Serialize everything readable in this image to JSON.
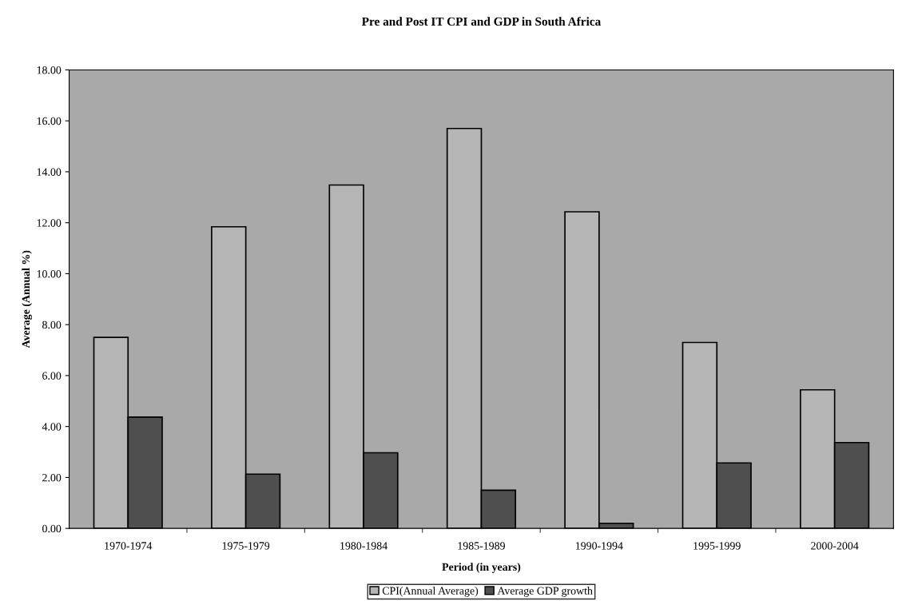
{
  "chart_data": {
    "type": "bar",
    "title": "Pre and Post IT CPI and GDP in South Africa",
    "xlabel": "Period (in years)",
    "ylabel": "Average (Annual %)",
    "categories": [
      "1970-1974",
      "1975-1979",
      "1980-1984",
      "1985-1989",
      "1990-1994",
      "1995-1999",
      "2000-2004"
    ],
    "series": [
      {
        "name": "CPI(Annual Average)",
        "color": "#b5b5b5",
        "values": [
          7.5,
          11.84,
          13.48,
          15.7,
          12.43,
          7.3,
          5.44
        ]
      },
      {
        "name": "Average GDP growth",
        "color": "#4f4f4f",
        "values": [
          4.37,
          2.13,
          2.97,
          1.5,
          0.2,
          2.57,
          3.37
        ]
      }
    ],
    "ylim": [
      0,
      18
    ],
    "yticks": [
      {
        "value": 0,
        "label": "0.00"
      },
      {
        "value": 2,
        "label": "2.00"
      },
      {
        "value": 4,
        "label": "4.00"
      },
      {
        "value": 6,
        "label": "6.00"
      },
      {
        "value": 8,
        "label": "8.00"
      },
      {
        "value": 10,
        "label": "10.00"
      },
      {
        "value": 12,
        "label": "12.00"
      },
      {
        "value": 14,
        "label": "14.00"
      },
      {
        "value": 16,
        "label": "16.00"
      },
      {
        "value": 18,
        "label": "18.00"
      }
    ],
    "grid": false,
    "legend": "bottom"
  }
}
